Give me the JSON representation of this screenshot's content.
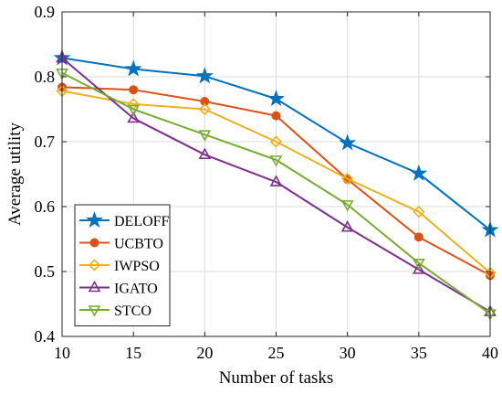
{
  "chart_data": {
    "type": "line",
    "xlabel": "Number of tasks",
    "ylabel": "Average utility",
    "x": [
      10,
      15,
      20,
      25,
      30,
      35,
      40
    ],
    "xlim": [
      10,
      40
    ],
    "ylim": [
      0.4,
      0.9
    ],
    "xticks": [
      "10",
      "15",
      "20",
      "25",
      "30",
      "35",
      "40"
    ],
    "yticks": [
      "0.4",
      "0.5",
      "0.6",
      "0.7",
      "0.8",
      "0.9"
    ],
    "grid": true,
    "legend_position": "bottom-left",
    "series": [
      {
        "name": "DELOFF",
        "color": "#0072BD",
        "marker": "star",
        "values": [
          0.829,
          0.812,
          0.801,
          0.766,
          0.698,
          0.651,
          0.564
        ]
      },
      {
        "name": "UCBTO",
        "color": "#D95319",
        "marker": "circle",
        "values": [
          0.784,
          0.78,
          0.762,
          0.74,
          0.642,
          0.553,
          0.494
        ]
      },
      {
        "name": "IWPSO",
        "color": "#EDB120",
        "marker": "diamond",
        "values": [
          0.778,
          0.758,
          0.75,
          0.7,
          0.643,
          0.592,
          0.498
        ]
      },
      {
        "name": "IGATO",
        "color": "#7E2F8E",
        "marker": "triangle-up",
        "values": [
          0.829,
          0.736,
          0.68,
          0.638,
          0.568,
          0.503,
          0.438
        ]
      },
      {
        "name": "STCO",
        "color": "#77AC30",
        "marker": "triangle-down",
        "values": [
          0.806,
          0.75,
          0.711,
          0.672,
          0.603,
          0.513,
          0.435
        ]
      }
    ]
  }
}
